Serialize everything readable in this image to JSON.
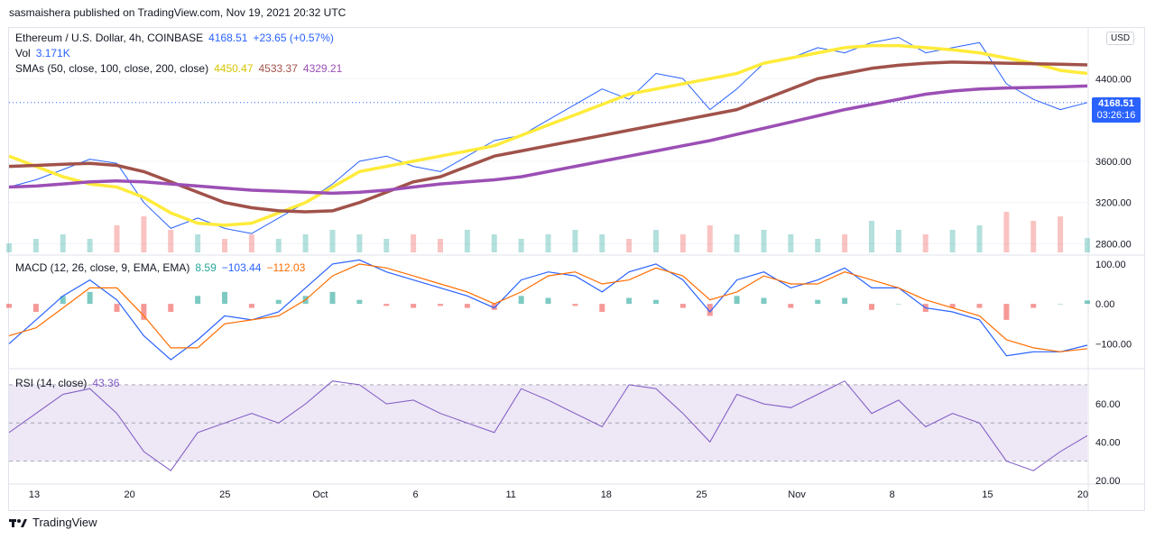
{
  "header": {
    "publish_text": "sasmaishera published on TradingView.com, Nov 19, 2021 20:32 UTC"
  },
  "legend": {
    "symbol": "Ethereum / U.S. Dollar, 4h, COINBASE",
    "price": "4168.51",
    "change": "+23.65 (+0.57%)",
    "vol_label": "Vol",
    "vol_value": "3.171K",
    "sma_label": "SMAs (50, close, 100, close, 200, close)",
    "sma50": "4450.47",
    "sma100": "4533.37",
    "sma200": "4329.21",
    "macd_label": "MACD (12, 26, close, 9, EMA, EMA)",
    "macd_hist": "8.59",
    "macd_line": "−103.44",
    "macd_signal": "−112.03",
    "rsi_label": "RSI (14, close)",
    "rsi_value": "43.36"
  },
  "price_tag": {
    "price": "4168.51",
    "countdown": "03:26:16"
  },
  "currency_button": "USD",
  "footer": {
    "brand": "TradingView"
  },
  "colors": {
    "price_line": "#2962ff",
    "sma50": "#ffeb3b",
    "sma100": "#a0524a",
    "sma200": "#9c4fb5",
    "macd": "#2962ff",
    "signal": "#ff6d00",
    "hist_up": "#26a69a",
    "hist_down": "#ef5350",
    "rsi": "#7e57c2",
    "rsi_band": "#ede7f6"
  },
  "chart_data": [
    {
      "type": "line",
      "title": "Ethereum / U.S. Dollar, 4h, COINBASE",
      "x_ticks": [
        "13",
        "20",
        "25",
        "Oct",
        "6",
        "11",
        "18",
        "25",
        "Nov",
        "8",
        "15",
        "20"
      ],
      "y_ticks": [
        "2800.00",
        "3200.00",
        "3600.00",
        "4400.00"
      ],
      "ylim": [
        2700,
        4900
      ],
      "series": [
        {
          "name": "Ethereum / U.S. Dollar",
          "values": [
            3350,
            3420,
            3520,
            3620,
            3580,
            3200,
            2950,
            3050,
            2950,
            2900,
            3050,
            3200,
            3380,
            3600,
            3650,
            3550,
            3500,
            3650,
            3800,
            3850,
            4000,
            4150,
            4300,
            4200,
            4450,
            4400,
            4100,
            4300,
            4550,
            4600,
            4700,
            4650,
            4750,
            4800,
            4650,
            4700,
            4750,
            4350,
            4200,
            4100,
            4168.51
          ]
        },
        {
          "name": "SMA 50",
          "values": [
            3650,
            3550,
            3450,
            3380,
            3350,
            3250,
            3100,
            3000,
            2980,
            3000,
            3100,
            3200,
            3350,
            3500,
            3550,
            3600,
            3650,
            3700,
            3750,
            3850,
            3950,
            4050,
            4150,
            4250,
            4300,
            4350,
            4400,
            4450,
            4550,
            4600,
            4650,
            4700,
            4720,
            4720,
            4700,
            4680,
            4650,
            4600,
            4550,
            4480,
            4450.47
          ]
        },
        {
          "name": "SMA 100",
          "values": [
            3550,
            3560,
            3570,
            3580,
            3560,
            3500,
            3400,
            3300,
            3200,
            3150,
            3120,
            3110,
            3120,
            3200,
            3300,
            3400,
            3450,
            3550,
            3650,
            3700,
            3750,
            3800,
            3850,
            3900,
            3950,
            4000,
            4050,
            4100,
            4200,
            4300,
            4400,
            4450,
            4500,
            4530,
            4550,
            4560,
            4555,
            4550,
            4545,
            4540,
            4533.37
          ]
        },
        {
          "name": "SMA 200",
          "values": [
            3350,
            3360,
            3380,
            3400,
            3410,
            3400,
            3380,
            3360,
            3340,
            3320,
            3310,
            3300,
            3290,
            3300,
            3320,
            3350,
            3380,
            3400,
            3420,
            3450,
            3500,
            3550,
            3600,
            3650,
            3700,
            3750,
            3800,
            3860,
            3920,
            3980,
            4040,
            4100,
            4150,
            4200,
            4250,
            4280,
            4300,
            4310,
            4315,
            4320,
            4329.21
          ]
        }
      ]
    },
    {
      "type": "bar",
      "title": "Vol",
      "values": [
        2,
        3,
        4,
        3,
        6,
        8,
        5,
        4,
        3,
        4,
        3,
        4,
        5,
        4,
        3,
        4,
        3,
        5,
        4,
        3,
        4,
        5,
        4,
        3,
        5,
        4,
        6,
        4,
        5,
        4,
        3,
        4,
        7,
        5,
        4,
        5,
        6,
        9,
        7,
        8,
        3.171
      ]
    },
    {
      "type": "line",
      "title": "MACD (12, 26, close, 9, EMA, EMA)",
      "y_ticks": [
        "100.00",
        "0.00",
        "−100.00"
      ],
      "ylim": [
        -160,
        120
      ],
      "series": [
        {
          "name": "MACD",
          "values": [
            -100,
            -40,
            20,
            60,
            10,
            -80,
            -140,
            -90,
            -30,
            -40,
            -20,
            40,
            100,
            110,
            80,
            60,
            40,
            20,
            -10,
            60,
            80,
            70,
            30,
            80,
            100,
            60,
            -20,
            60,
            80,
            40,
            60,
            90,
            40,
            40,
            -10,
            -20,
            -40,
            -130,
            -120,
            -120,
            -103.44
          ]
        },
        {
          "name": "Signal",
          "values": [
            -80,
            -60,
            -10,
            40,
            40,
            -30,
            -110,
            -110,
            -50,
            -40,
            -30,
            10,
            70,
            100,
            90,
            70,
            50,
            30,
            0,
            30,
            70,
            80,
            50,
            60,
            90,
            70,
            10,
            30,
            70,
            50,
            50,
            80,
            60,
            40,
            10,
            -10,
            -30,
            -90,
            -110,
            -120,
            -112.03
          ]
        }
      ],
      "histogram": [
        -10,
        -20,
        20,
        30,
        -20,
        -40,
        -20,
        20,
        30,
        -10,
        10,
        20,
        30,
        10,
        -5,
        -10,
        -5,
        -10,
        -15,
        20,
        15,
        -5,
        -20,
        15,
        10,
        -10,
        -30,
        20,
        15,
        -10,
        10,
        15,
        -15,
        0,
        -20,
        -10,
        -10,
        -40,
        -10,
        0,
        8.59
      ]
    },
    {
      "type": "line",
      "title": "RSI (14, close)",
      "y_ticks": [
        "60.00",
        "40.00",
        "20.00"
      ],
      "ylim": [
        18,
        78
      ],
      "series": [
        {
          "name": "RSI",
          "values": [
            45,
            55,
            65,
            68,
            55,
            35,
            25,
            45,
            50,
            55,
            50,
            60,
            72,
            70,
            60,
            62,
            55,
            50,
            45,
            68,
            62,
            55,
            48,
            70,
            68,
            55,
            40,
            65,
            60,
            58,
            65,
            72,
            55,
            62,
            48,
            55,
            50,
            30,
            25,
            35,
            43.36
          ]
        }
      ]
    }
  ]
}
